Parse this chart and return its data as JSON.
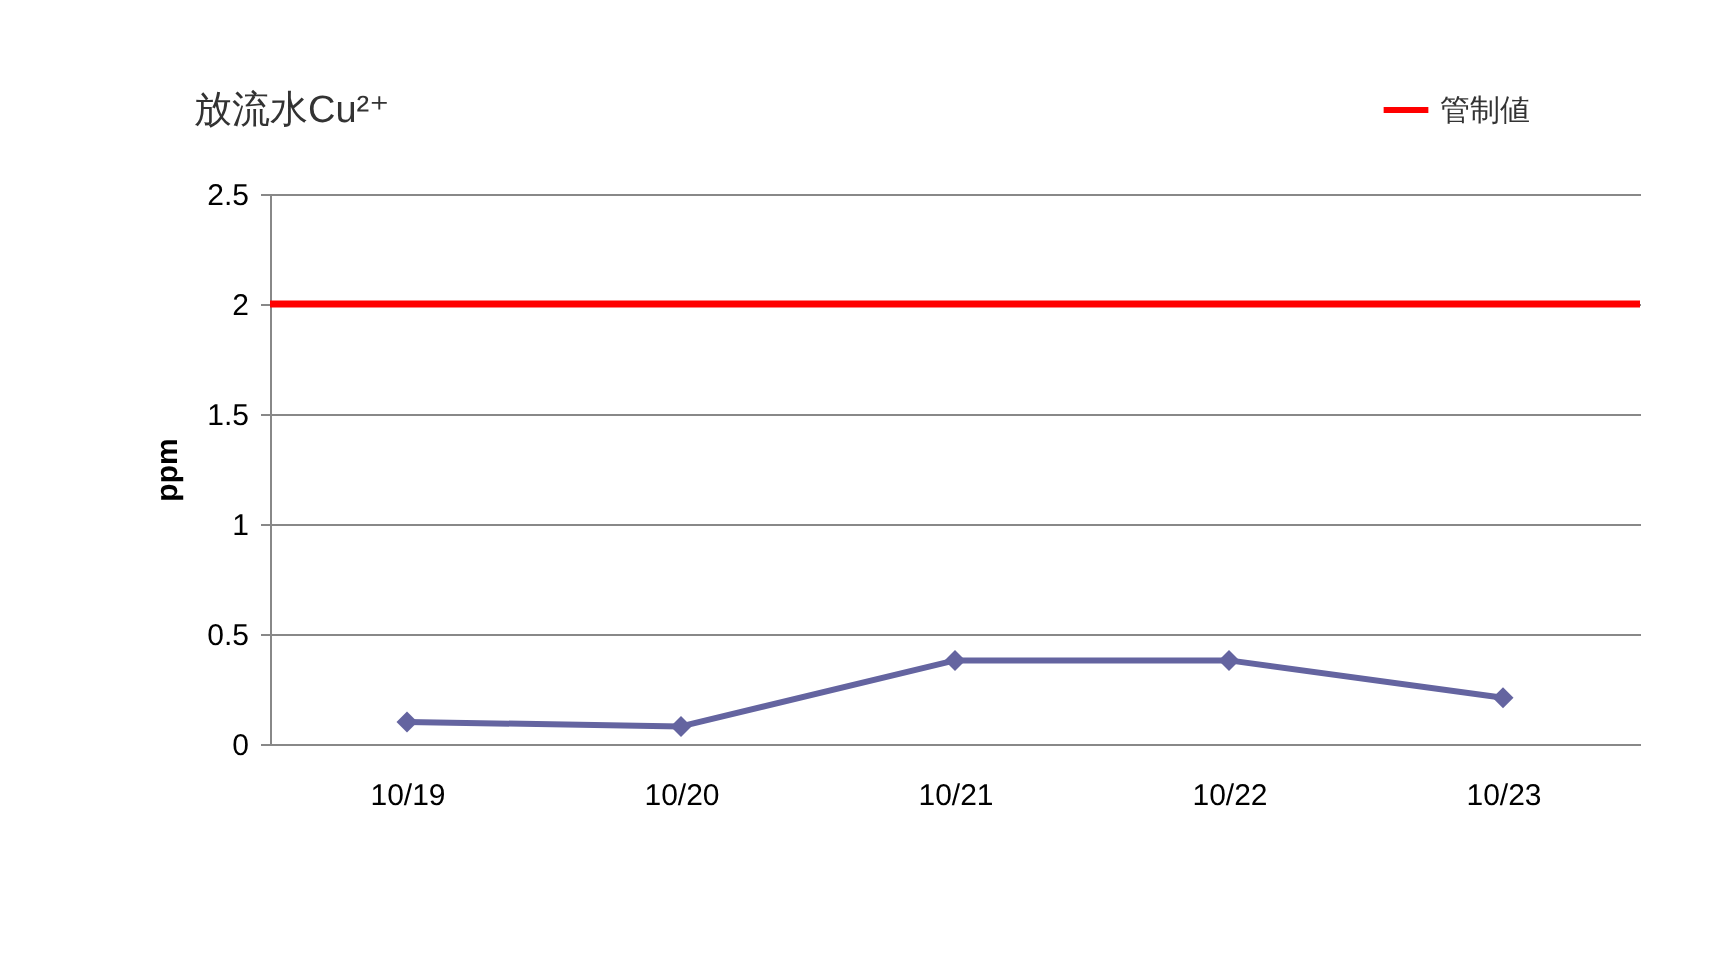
{
  "chart_data": {
    "type": "line",
    "title": "放流水Cu²⁺",
    "ylabel": "ppm",
    "categories": [
      "10/19",
      "10/20",
      "10/21",
      "10/22",
      "10/23"
    ],
    "series": [
      {
        "color": "#6464a0",
        "values": [
          0.1,
          0.08,
          0.38,
          0.38,
          0.21
        ]
      }
    ],
    "ylim": [
      0,
      2.5
    ],
    "yticks": [
      0,
      0.5,
      1,
      1.5,
      2,
      2.5
    ],
    "grid": "y",
    "marker": "diamond",
    "legend": "top right",
    "ref_lines": [
      {
        "axis": "y",
        "value": 2,
        "label": "管制値",
        "color": "#ff0000"
      }
    ]
  }
}
